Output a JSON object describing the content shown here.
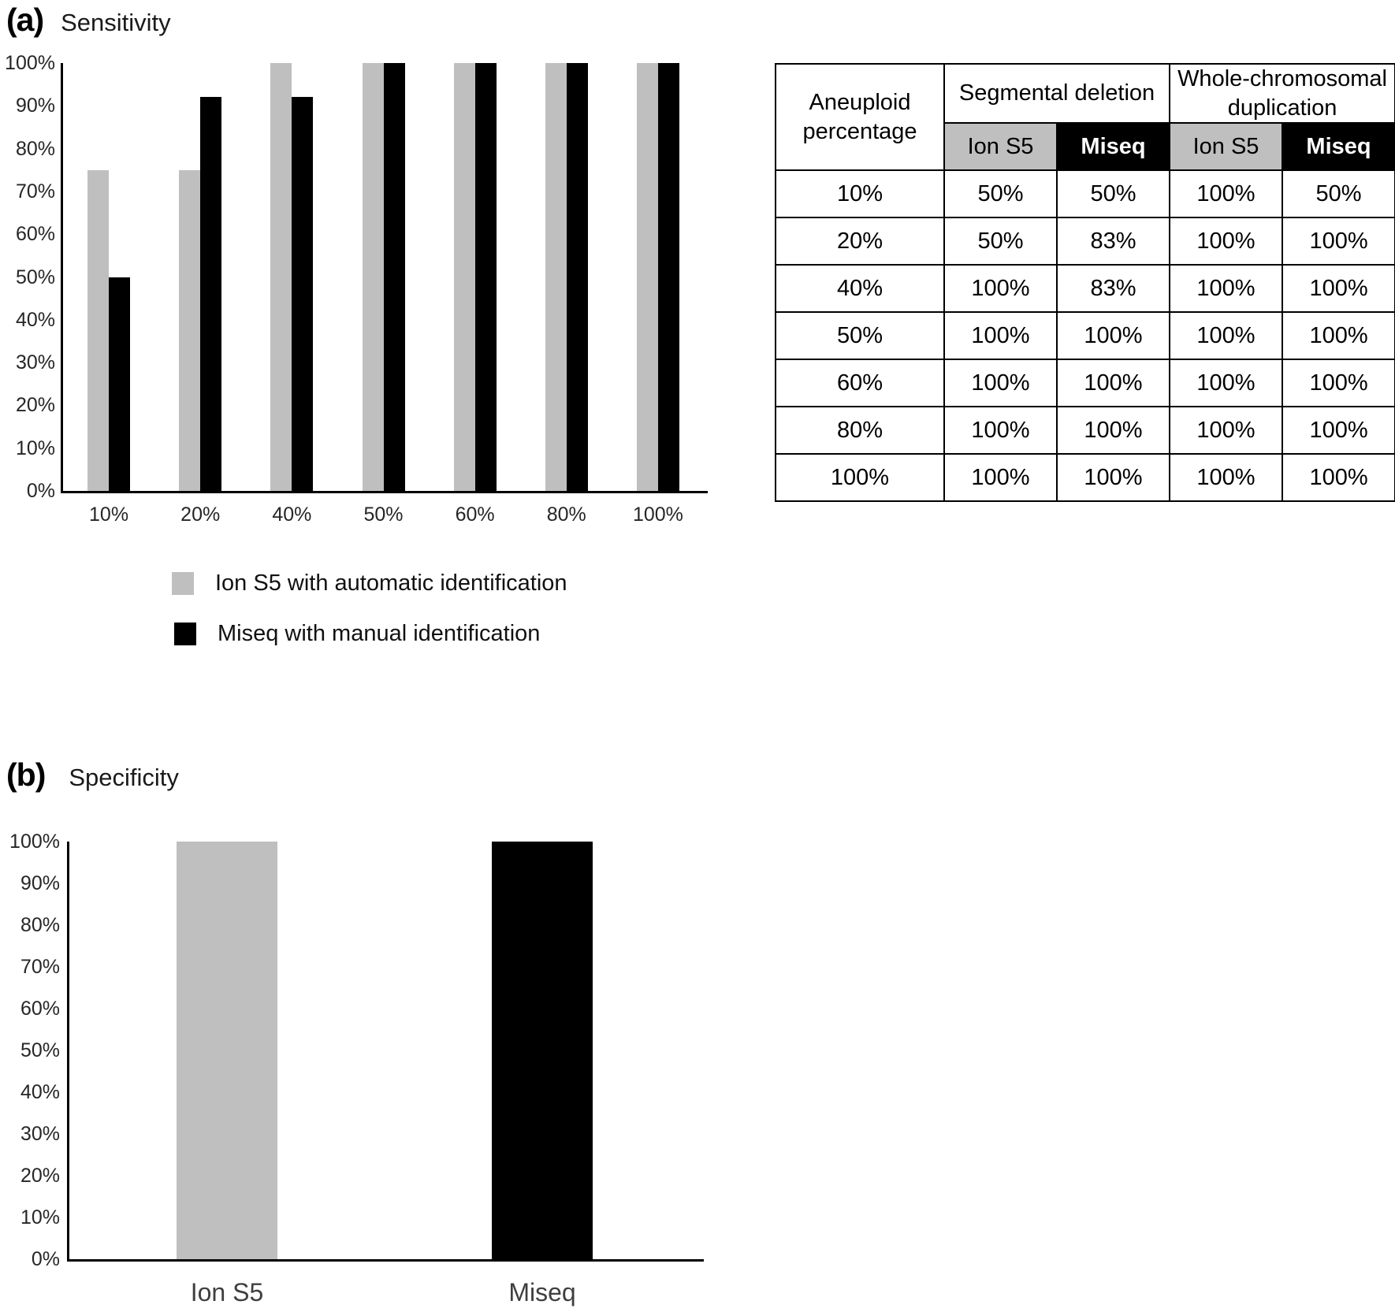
{
  "panel_a": {
    "tag": "(a)",
    "title": "Sensitivity",
    "legend": [
      {
        "label": "Ion S5 with automatic identification",
        "color": "#bfbfbf"
      },
      {
        "label": "Miseq with manual identification",
        "color": "#000000"
      }
    ],
    "table": {
      "row_header": "Aneuploid percentage",
      "groups": [
        {
          "label": "Segmental deletion"
        },
        {
          "label": "Whole-chromosomal duplication"
        }
      ],
      "sub_headers": [
        {
          "label": "Ion S5",
          "bg": "#bfbfbf",
          "fg": "#000000"
        },
        {
          "label": "Miseq",
          "bg": "#000000",
          "fg": "#ffffff"
        }
      ],
      "rows": [
        {
          "label": "10%",
          "values": [
            "50%",
            "50%",
            "100%",
            "50%"
          ]
        },
        {
          "label": "20%",
          "values": [
            "50%",
            "83%",
            "100%",
            "100%"
          ]
        },
        {
          "label": "40%",
          "values": [
            "100%",
            "83%",
            "100%",
            "100%"
          ]
        },
        {
          "label": "50%",
          "values": [
            "100%",
            "100%",
            "100%",
            "100%"
          ]
        },
        {
          "label": "60%",
          "values": [
            "100%",
            "100%",
            "100%",
            "100%"
          ]
        },
        {
          "label": "80%",
          "values": [
            "100%",
            "100%",
            "100%",
            "100%"
          ]
        },
        {
          "label": "100%",
          "values": [
            "100%",
            "100%",
            "100%",
            "100%"
          ]
        }
      ]
    }
  },
  "panel_b": {
    "tag": "(b)",
    "title": "Specificity"
  },
  "chart_data": [
    {
      "id": "sensitivity",
      "type": "bar",
      "title": "Sensitivity",
      "xlabel": "",
      "ylabel": "",
      "categories": [
        "10%",
        "20%",
        "40%",
        "50%",
        "60%",
        "80%",
        "100%"
      ],
      "series": [
        {
          "name": "Ion S5 with automatic identification",
          "color": "#bfbfbf",
          "values": [
            75,
            75,
            100,
            100,
            100,
            100,
            100
          ]
        },
        {
          "name": "Miseq with manual identification",
          "color": "#000000",
          "values": [
            50,
            92,
            92,
            100,
            100,
            100,
            100
          ]
        }
      ],
      "ylim": [
        0,
        100
      ],
      "yticks": [
        "0%",
        "10%",
        "20%",
        "30%",
        "40%",
        "50%",
        "60%",
        "70%",
        "80%",
        "90%",
        "100%"
      ],
      "grid": false,
      "legend_position": "below-left"
    },
    {
      "id": "specificity",
      "type": "bar",
      "title": "Specificity",
      "xlabel": "",
      "ylabel": "",
      "categories": [
        "Ion S5",
        "Miseq"
      ],
      "values": [
        100,
        100
      ],
      "colors": [
        "#bfbfbf",
        "#000000"
      ],
      "ylim": [
        0,
        100
      ],
      "yticks": [
        "0%",
        "10%",
        "20%",
        "30%",
        "40%",
        "50%",
        "60%",
        "70%",
        "80%",
        "90%",
        "100%"
      ],
      "grid": false,
      "legend_position": "none"
    }
  ]
}
